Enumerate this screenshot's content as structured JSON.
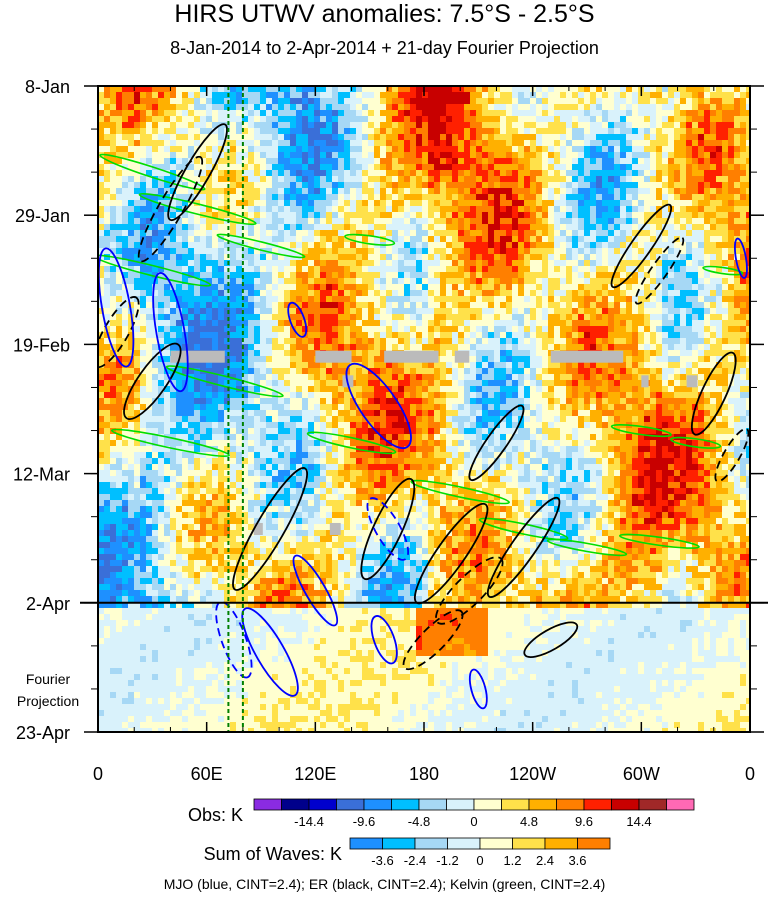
{
  "chart_data": {
    "type": "heatmap",
    "title": "HIRS UTWV anomalies: 7.5°S - 2.5°S",
    "subtitle": "8-Jan-2014 to 2-Apr-2014 + 21-day Fourier Projection",
    "x_tick_labels": [
      "0",
      "60E",
      "120E",
      "180",
      "120W",
      "60W",
      "0"
    ],
    "x_ticks_deg_east": [
      0,
      60,
      120,
      180,
      240,
      300,
      360
    ],
    "y_tick_labels": [
      "8-Jan",
      "29-Jan",
      "19-Feb",
      "12-Mar",
      "2-Apr",
      "23-Apr"
    ],
    "y_ticks_day_offset": [
      0,
      21,
      42,
      63,
      84,
      105
    ],
    "projection_label": [
      "Fourier",
      "Projection"
    ],
    "projection_start_day": 84,
    "obs_colorbar": {
      "label": "Obs: K",
      "tick_labels": [
        "-14.4",
        "-9.6",
        "-4.8",
        "0",
        "4.8",
        "9.6",
        "14.4"
      ],
      "colors": [
        "#8a2be2",
        "#00008b",
        "#0000cd",
        "#3a6fd8",
        "#1e90ff",
        "#00bfff",
        "#a6d8f5",
        "#d9f2fb",
        "#ffffd0",
        "#ffe14a",
        "#ffb000",
        "#ff7f00",
        "#ff2000",
        "#c80000",
        "#a02828",
        "#ff69b4"
      ]
    },
    "waves_colorbar": {
      "label": "Sum of Waves: K",
      "tick_labels": [
        "-3.6",
        "-2.4",
        "-1.2",
        "0",
        "1.2",
        "2.4",
        "3.6"
      ],
      "colors": [
        "#1e90ff",
        "#00bfff",
        "#a6d8f5",
        "#d9f2fb",
        "#ffffd0",
        "#ffe14a",
        "#ffb000",
        "#ff7f00"
      ]
    },
    "contours": [
      {
        "name": "MJO",
        "color": "#0000ff",
        "cint": 2.4
      },
      {
        "name": "ER",
        "color": "#000000",
        "cint": 2.4
      },
      {
        "name": "Kelvin",
        "color": "#00dd00",
        "cint": 2.4
      }
    ],
    "vertical_markers_deg_east": [
      72,
      80
    ],
    "grid": false
  },
  "footer": "MJO (blue, CINT=2.4); ER (black, CINT=2.4); Kelvin (green, CINT=2.4)"
}
